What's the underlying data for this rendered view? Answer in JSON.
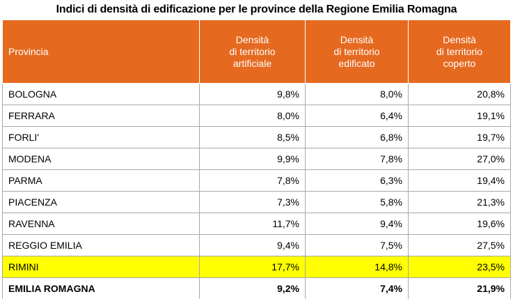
{
  "title": "Indici di densità di edificazione per le province della Regione Emilia Romagna",
  "headers": {
    "col0": "Provincia",
    "col1": [
      "Densità",
      "di territorio",
      "artificiale"
    ],
    "col2": [
      "Densità",
      "di territorio",
      "edificato"
    ],
    "col3": [
      "Densità",
      "di territorio",
      "coperto"
    ]
  },
  "rows": [
    {
      "name": "BOLOGNA",
      "artificiale": "9,8%",
      "edificato": "8,0%",
      "coperto": "20,8%"
    },
    {
      "name": "FERRARA",
      "artificiale": "8,0%",
      "edificato": "6,4%",
      "coperto": "19,1%"
    },
    {
      "name": "FORLI'",
      "artificiale": "8,5%",
      "edificato": "6,8%",
      "coperto": "19,7%"
    },
    {
      "name": "MODENA",
      "artificiale": "9,9%",
      "edificato": "7,8%",
      "coperto": "27,0%"
    },
    {
      "name": "PARMA",
      "artificiale": "7,8%",
      "edificato": "6,3%",
      "coperto": "19,4%"
    },
    {
      "name": "PIACENZA",
      "artificiale": "7,3%",
      "edificato": "5,8%",
      "coperto": "21,3%"
    },
    {
      "name": "RAVENNA",
      "artificiale": "11,7%",
      "edificato": "9,4%",
      "coperto": "19,6%"
    },
    {
      "name": "REGGIO EMILIA",
      "artificiale": "9,4%",
      "edificato": "7,5%",
      "coperto": "27,5%"
    },
    {
      "name": "RIMINI",
      "artificiale": "17,7%",
      "edificato": "14,8%",
      "coperto": "23,5%"
    },
    {
      "name": "EMILIA ROMAGNA",
      "artificiale": "9,2%",
      "edificato": "7,4%",
      "coperto": "21,9%"
    }
  ],
  "colors": {
    "header_bg": "#e56a20",
    "highlight": "#ffff00",
    "header_text": "#ffffff"
  }
}
